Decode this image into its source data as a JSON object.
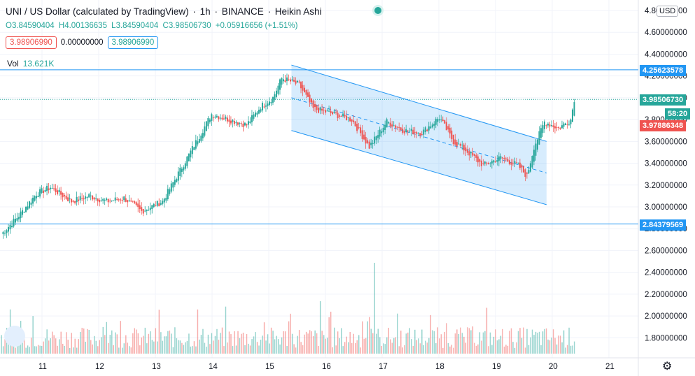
{
  "header": {
    "title_parts": [
      "UNI / US Dollar (calculated by TradingView)",
      "1h",
      "BINANCE",
      "Heikin Ashi"
    ],
    "ohlc": {
      "o": "O3.84590404",
      "h": "H4.00136635",
      "l": "L3.84590404",
      "c": "C3.98506730",
      "chg": "+0.05916656 (+1.51%)"
    },
    "box_bid": "3.98906990",
    "box_mid": "0.00000000",
    "box_ask": "3.98906990",
    "vol_label": "Vol",
    "vol_value": "13.621K",
    "currency": "USD",
    "tag_top": "4.25623578",
    "tag_last": "3.98506730",
    "tag_timer": "58:20",
    "tag_red": "3.97886348",
    "tag_bottom": "2.84379569",
    "colors": {
      "up": "#26a69a",
      "down": "#ef5350",
      "blue": "#2196f3"
    }
  },
  "chart_data": {
    "type": "candlestick",
    "x_ticks": [
      "11",
      "12",
      "13",
      "14",
      "15",
      "16",
      "17",
      "18",
      "19",
      "20",
      "21"
    ],
    "y_ticks": [
      "4.80000000",
      "4.60000000",
      "4.40000000",
      "4.20000000",
      "4.00000000",
      "3.80000000",
      "3.60000000",
      "3.40000000",
      "3.20000000",
      "3.00000000",
      "2.80000000",
      "2.60000000",
      "2.40000000",
      "2.20000000",
      "2.00000000",
      "1.80000000"
    ],
    "ylim": [
      1.64,
      4.85
    ],
    "keypoints": [
      [
        0,
        2.75
      ],
      [
        10,
        2.92
      ],
      [
        20,
        3.12
      ],
      [
        28,
        3.18
      ],
      [
        40,
        3.05
      ],
      [
        50,
        3.1
      ],
      [
        60,
        3.05
      ],
      [
        70,
        3.08
      ],
      [
        80,
        2.96
      ],
      [
        92,
        3.05
      ],
      [
        105,
        3.42
      ],
      [
        120,
        3.85
      ],
      [
        130,
        3.8
      ],
      [
        140,
        3.75
      ],
      [
        148,
        3.92
      ],
      [
        155,
        4.0
      ],
      [
        160,
        4.18
      ],
      [
        170,
        4.12
      ],
      [
        178,
        3.9
      ],
      [
        190,
        3.85
      ],
      [
        200,
        3.8
      ],
      [
        210,
        3.55
      ],
      [
        220,
        3.78
      ],
      [
        230,
        3.7
      ],
      [
        240,
        3.68
      ],
      [
        250,
        3.82
      ],
      [
        258,
        3.6
      ],
      [
        265,
        3.52
      ],
      [
        275,
        3.38
      ],
      [
        285,
        3.45
      ],
      [
        295,
        3.38
      ],
      [
        300,
        3.28
      ],
      [
        304,
        3.55
      ],
      [
        310,
        3.78
      ],
      [
        318,
        3.72
      ],
      [
        325,
        3.8
      ],
      [
        327,
        3.99
      ]
    ],
    "volume_tags": [
      "low",
      "high"
    ],
    "horizontal_lines": [
      4.25623578,
      2.84379569,
      3.9850673
    ],
    "channel": {
      "upper": [
        [
          4.3,
          15.4
        ],
        [
          3.6,
          19.9
        ]
      ],
      "lower": [
        [
          3.7,
          15.4
        ],
        [
          3.02,
          19.9
        ]
      ]
    },
    "y_axis_labels_visible": true
  }
}
